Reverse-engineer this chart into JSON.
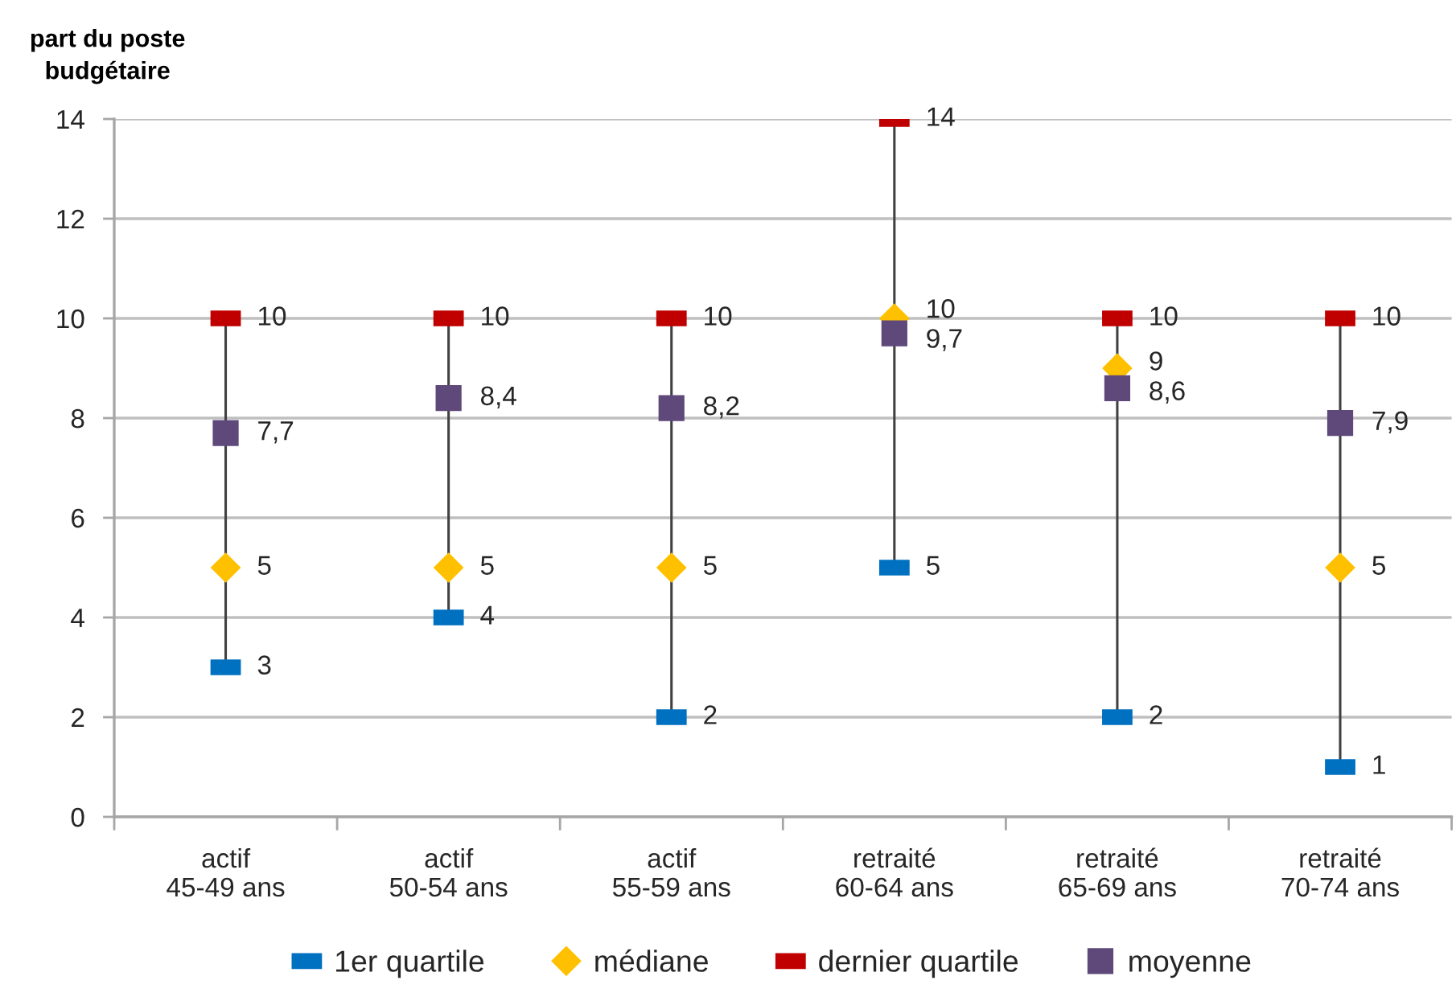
{
  "chart_data": {
    "type": "scatter",
    "ylabel": "part du poste\nbudgétaire",
    "categories": [
      "actif\n45-49 ans",
      "actif\n50-54 ans",
      "actif\n55-59 ans",
      "retraité\n60-64 ans",
      "retraité\n65-69 ans",
      "retraité\n70-74 ans"
    ],
    "series": [
      {
        "name": "1er quartile",
        "color": "#0070c0",
        "values": [
          3,
          4,
          2,
          5,
          2,
          1
        ],
        "value_labels": [
          "3",
          "4",
          "2",
          "5",
          "2",
          "1"
        ]
      },
      {
        "name": "médiane",
        "color": "#ffc000",
        "marker": "diamond",
        "values": [
          5,
          5,
          5,
          10,
          9,
          5
        ],
        "value_labels": [
          "5",
          "5",
          "5",
          "10",
          "9",
          "5"
        ]
      },
      {
        "name": "dernier quartile",
        "color": "#c00000",
        "values": [
          10,
          10,
          10,
          14,
          10,
          10
        ],
        "value_labels": [
          "10",
          "10",
          "10",
          "14",
          "10",
          "10"
        ]
      },
      {
        "name": "moyenne",
        "color": "#5f497a",
        "marker": "square",
        "values": [
          7.7,
          8.4,
          8.2,
          9.7,
          8.6,
          7.9
        ],
        "value_labels": [
          "7,7",
          "8,4",
          "8,2",
          "9,7",
          "8,6",
          "7,9"
        ]
      }
    ],
    "ylim": [
      0,
      14
    ],
    "yticks": [
      0,
      2,
      4,
      6,
      8,
      10,
      12,
      14
    ],
    "grid": "y",
    "legend": "bottom"
  }
}
